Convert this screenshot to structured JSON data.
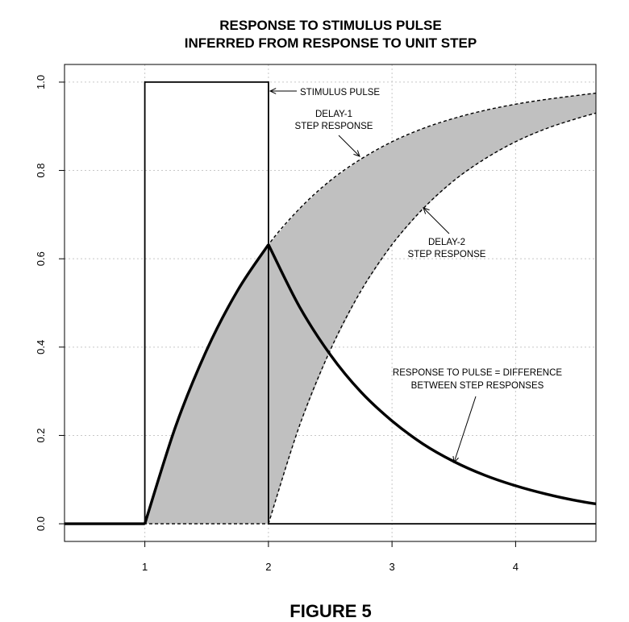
{
  "chart_data": {
    "type": "line",
    "title": [
      "RESPONSE TO STIMULUS PULSE",
      "INFERRED FROM RESPONSE TO UNIT STEP"
    ],
    "caption": "FIGURE 5",
    "xlabel": "",
    "ylabel": "",
    "xlim": [
      0.35,
      4.65
    ],
    "ylim": [
      -0.04,
      1.04
    ],
    "xticks": [
      1,
      2,
      3,
      4
    ],
    "xtick_labels": [
      "1",
      "2",
      "3",
      "4"
    ],
    "yticks": [
      0.0,
      0.2,
      0.4,
      0.6,
      0.8,
      1.0
    ],
    "ytick_labels": [
      "0.0",
      "0.2",
      "0.4",
      "0.6",
      "0.8",
      "1.0"
    ],
    "grid": true,
    "series": [
      {
        "style": "solid-thin",
        "x": [
          0.35,
          1,
          1,
          2,
          2,
          4.65
        ],
        "y": [
          0,
          0,
          1,
          1,
          0,
          0
        ]
      },
      {
        "style": "dashed",
        "x": [
          0.35,
          1,
          1.25,
          1.5,
          1.75,
          2,
          2.25,
          2.5,
          2.75,
          3,
          3.25,
          3.5,
          3.75,
          4,
          4.25,
          4.5,
          4.65
        ],
        "y": [
          0,
          0,
          0.221,
          0.393,
          0.528,
          0.632,
          0.713,
          0.777,
          0.826,
          0.865,
          0.895,
          0.918,
          0.936,
          0.95,
          0.961,
          0.97,
          0.975
        ]
      },
      {
        "style": "dashed",
        "x": [
          0.35,
          2,
          2.25,
          2.5,
          2.75,
          3,
          3.25,
          3.5,
          3.75,
          4,
          4.25,
          4.5,
          4.65
        ],
        "y": [
          0,
          0,
          0.221,
          0.393,
          0.528,
          0.632,
          0.713,
          0.777,
          0.826,
          0.865,
          0.895,
          0.918,
          0.93
        ]
      },
      {
        "style": "solid-thick",
        "x": [
          0.35,
          1,
          1.25,
          1.5,
          1.75,
          2,
          2.25,
          2.5,
          2.75,
          3,
          3.25,
          3.5,
          3.75,
          4,
          4.25,
          4.5,
          4.65
        ],
        "y": [
          0,
          0,
          0.221,
          0.393,
          0.528,
          0.632,
          0.492,
          0.383,
          0.298,
          0.233,
          0.181,
          0.141,
          0.11,
          0.086,
          0.067,
          0.052,
          0.045
        ]
      }
    ],
    "fill_between": {
      "upper_series": 1,
      "lower_series": 2,
      "color": "#c0c0c0"
    },
    "annotations": [
      {
        "text": [
          "STIMULUS PULSE"
        ],
        "anchor": "start"
      },
      {
        "text": [
          "DELAY-1",
          "STEP RESPONSE"
        ],
        "anchor": "middle"
      },
      {
        "text": [
          "DELAY-2",
          "STEP RESPONSE"
        ],
        "anchor": "middle"
      },
      {
        "text": [
          "RESPONSE TO PULSE = DIFFERENCE",
          "BETWEEN STEP RESPONSES"
        ],
        "anchor": "middle"
      }
    ],
    "colors": {
      "line": "#000000",
      "fill": "#c0c0c0",
      "grid": "#c8c8c8"
    }
  }
}
